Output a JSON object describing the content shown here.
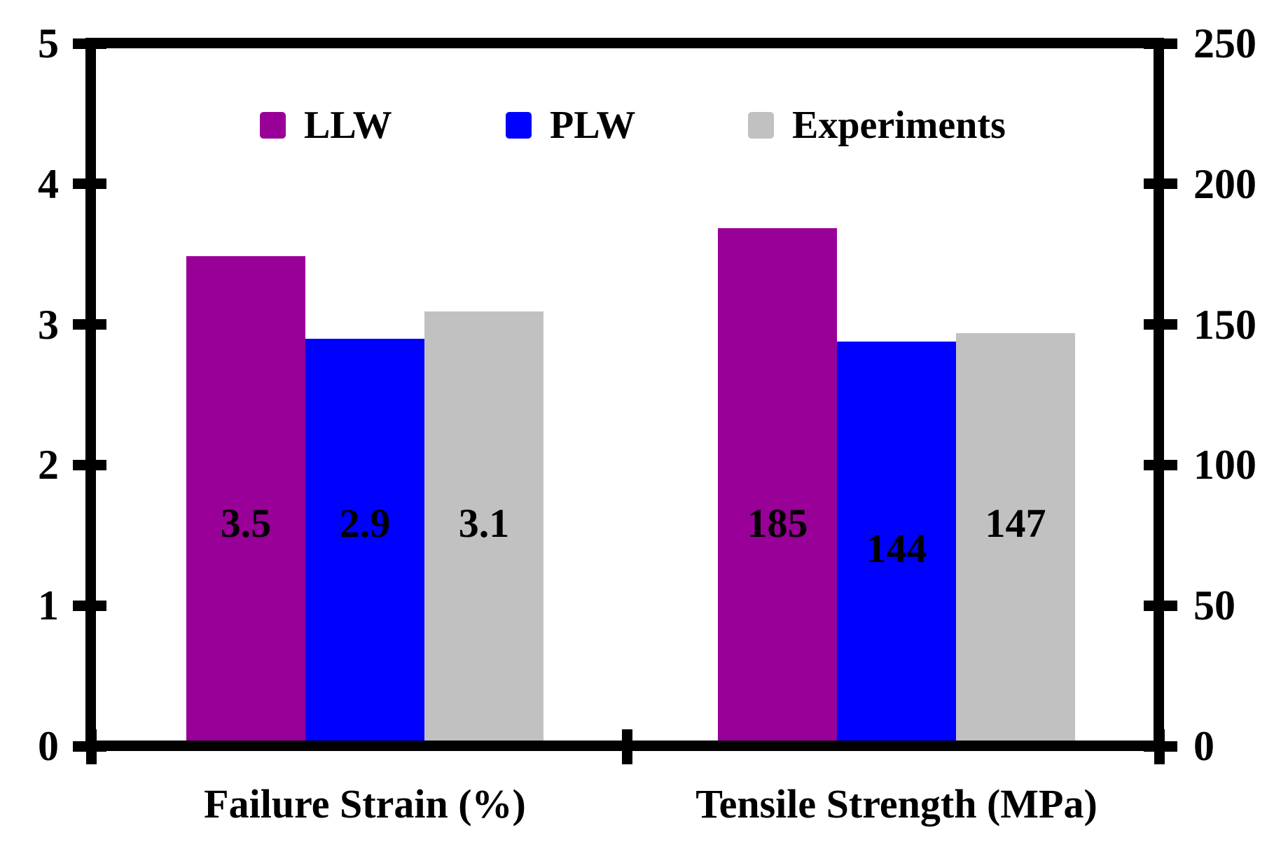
{
  "figure": {
    "background": "#FFFFFF",
    "frame_color": "#000000",
    "text_color": "#000000"
  },
  "chart_data": {
    "type": "bar",
    "title": "",
    "categories": [
      "Failure Strain (%)",
      "Tensile Strength (MPa)"
    ],
    "category_axis": [
      "left",
      "right"
    ],
    "series": [
      {
        "name": "LLW",
        "color": "#980098",
        "values": [
          3.5,
          185
        ],
        "data_labels": [
          "3.5",
          "185"
        ],
        "label_dy": [
          0,
          0
        ]
      },
      {
        "name": "PLW",
        "color": "#0000FF",
        "values": [
          2.9,
          144
        ],
        "data_labels": [
          "2.9",
          "144"
        ],
        "label_dy": [
          0,
          36
        ]
      },
      {
        "name": "Experiments",
        "color": "#C1C1C1",
        "values": [
          3.1,
          147
        ],
        "data_labels": [
          "3.1",
          "147"
        ],
        "label_dy": [
          0,
          0
        ]
      }
    ],
    "left_axis": {
      "label": "",
      "min": 0,
      "max": 5,
      "ticks": [
        "0",
        "1",
        "2",
        "3",
        "4",
        "5"
      ]
    },
    "right_axis": {
      "label": "",
      "min": 0,
      "max": 250,
      "ticks": [
        "0",
        "50",
        "100",
        "150",
        "200",
        "250"
      ]
    },
    "legend": {
      "position": "top-inside",
      "entries": [
        "LLW",
        "PLW",
        "Experiments"
      ]
    },
    "grid": false
  }
}
